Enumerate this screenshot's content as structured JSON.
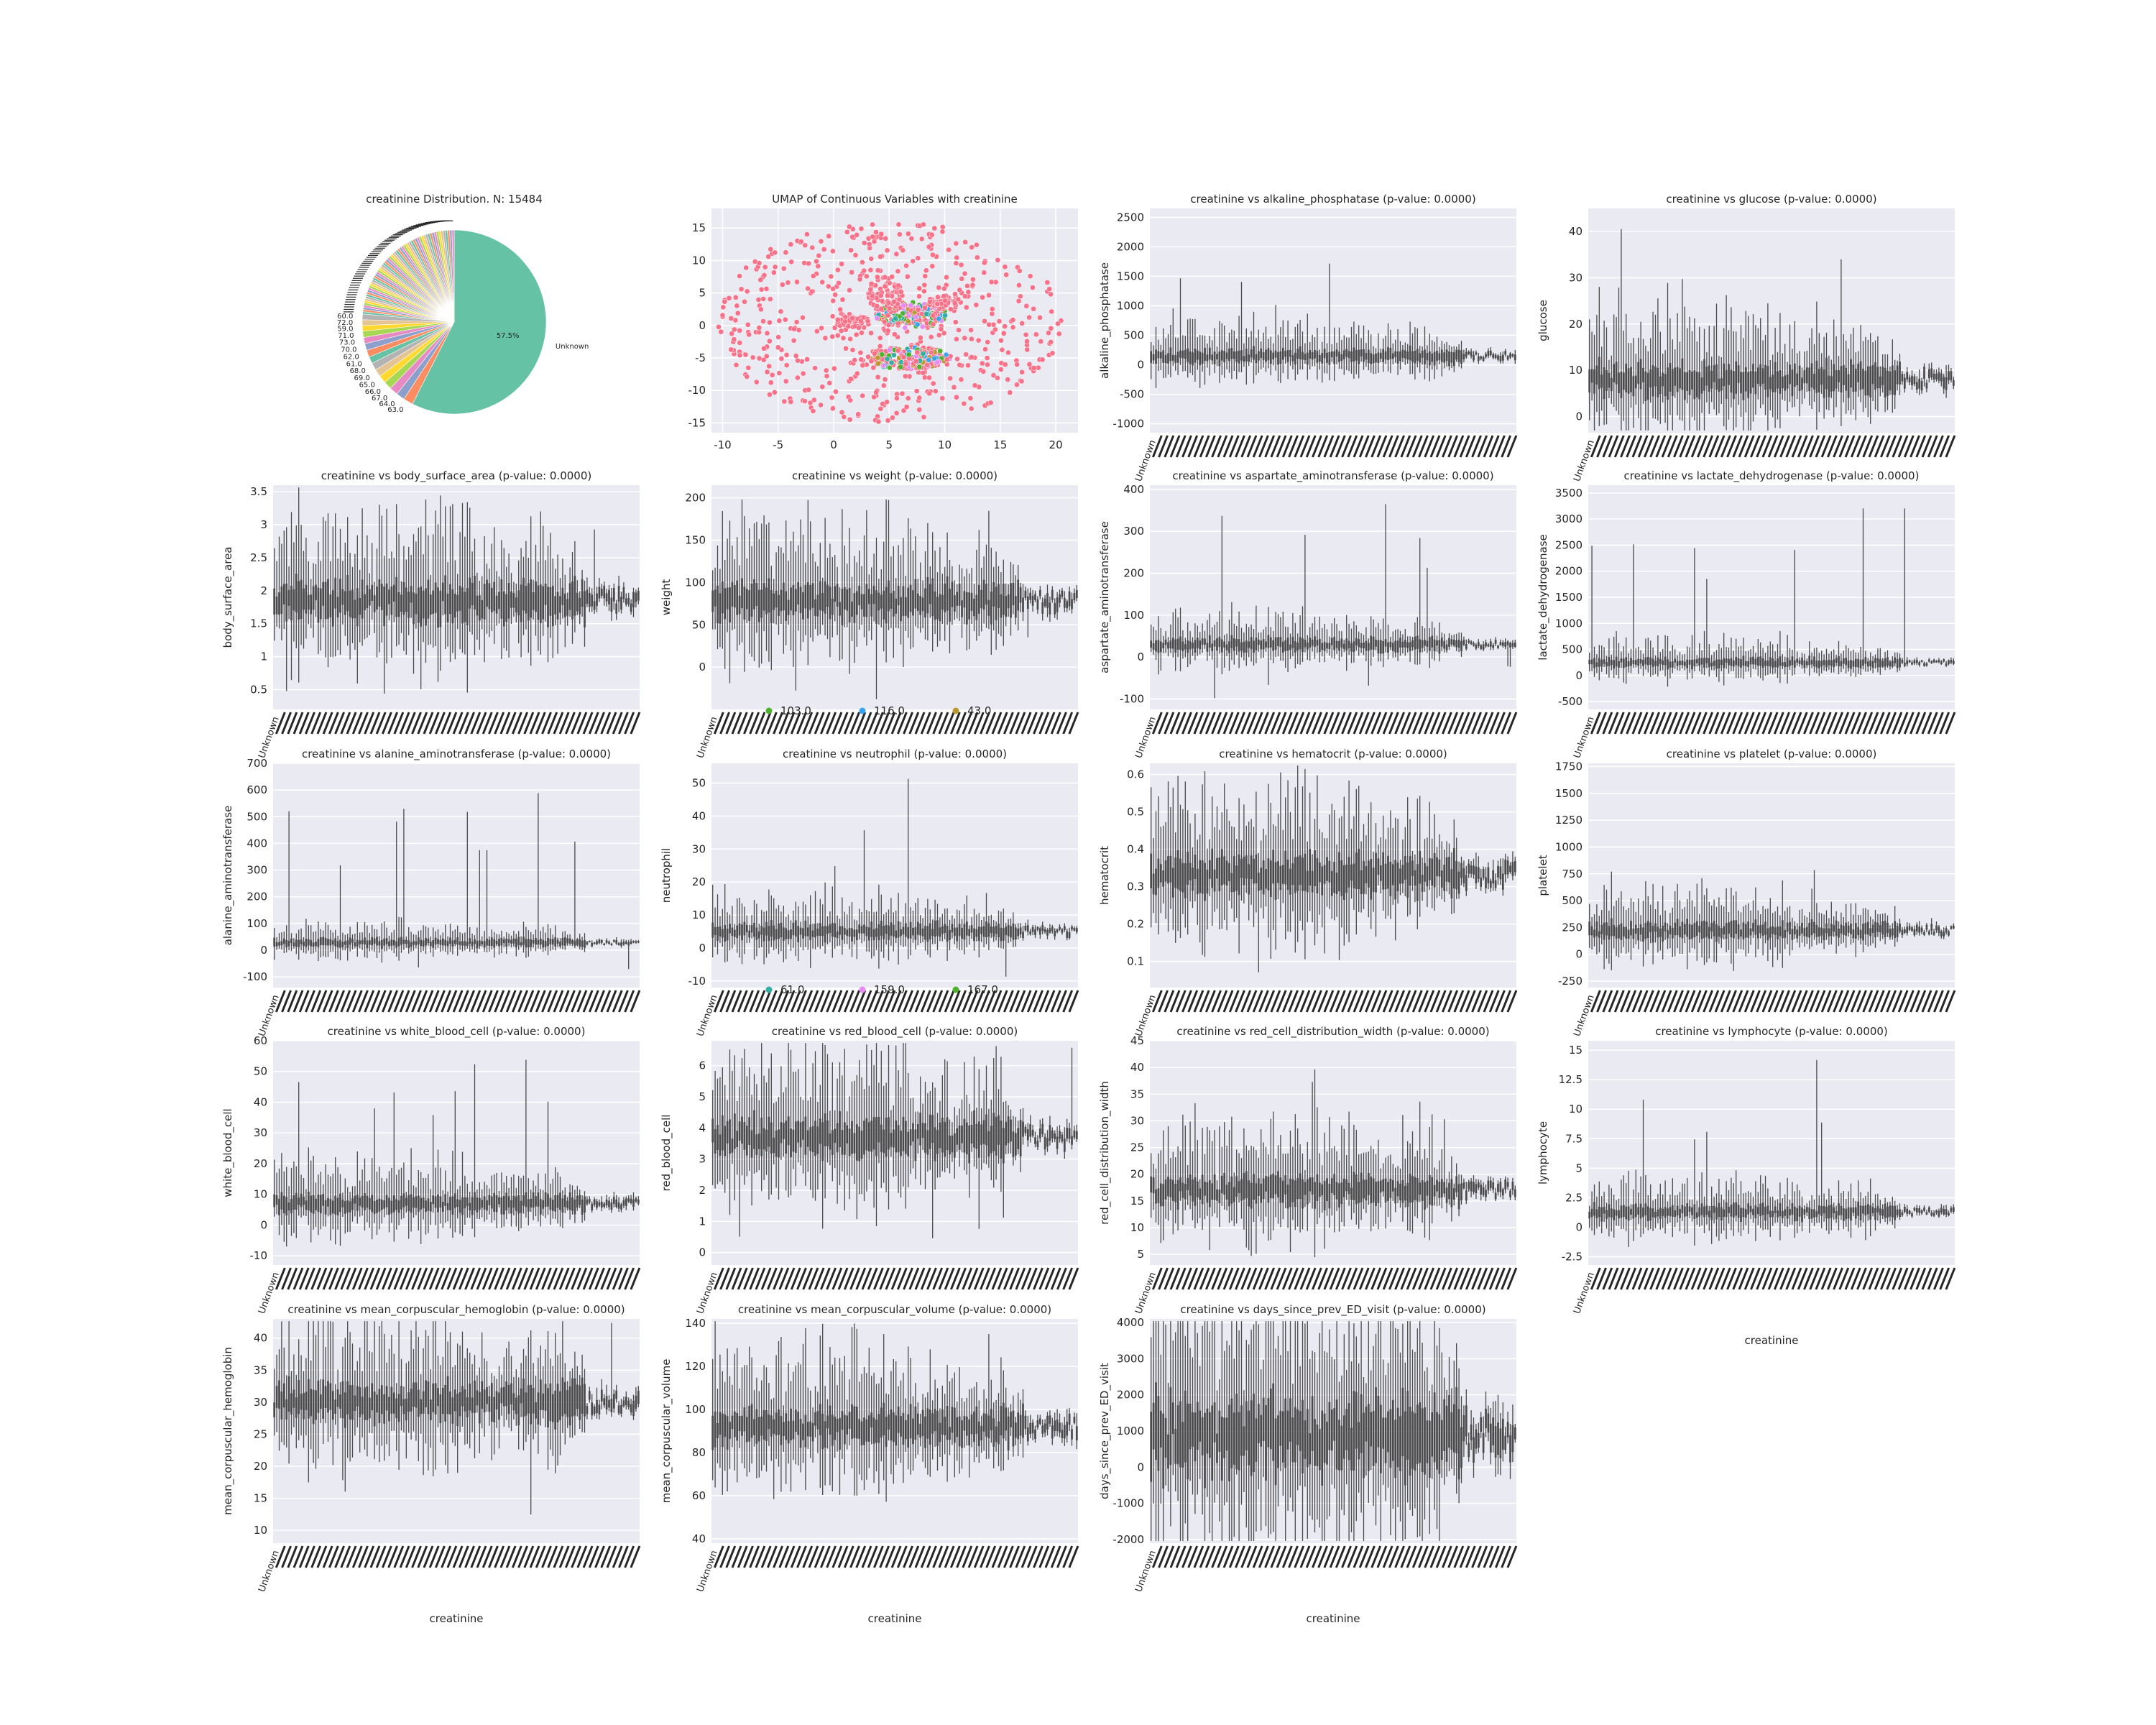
{
  "figure": {
    "background": "#ffffff",
    "panel_bg": "#eaeaf2",
    "grid_color": "#ffffff",
    "box_color": "#4a4a4a",
    "xtick_text": "Unknown",
    "xlabel_text": "creatinine"
  },
  "chart_data": [
    {
      "type": "pie",
      "title": "creatinine Distribution. N: 15484",
      "slices": [
        {
          "label": "Unknown",
          "pct": 57.5,
          "color": "#66c2a5",
          "text": "57.5%"
        },
        {
          "label": "63.0",
          "pct": 1.7,
          "color": "#fc8d62"
        },
        {
          "label": "64.0",
          "pct": 1.5,
          "color": "#8da0cb"
        },
        {
          "label": "67.0",
          "pct": 1.5,
          "color": "#e78ac3"
        },
        {
          "label": "66.0",
          "pct": 1.4,
          "color": "#a6d854"
        },
        {
          "label": "65.0",
          "pct": 1.4,
          "color": "#ffd92f"
        },
        {
          "label": "69.0",
          "pct": 1.3,
          "color": "#e5c494"
        },
        {
          "label": "68.0",
          "pct": 1.3,
          "color": "#b3b3b3"
        },
        {
          "label": "61.0",
          "pct": 1.2,
          "color": "#66c2a5"
        },
        {
          "label": "62.0",
          "pct": 1.2,
          "color": "#fc8d62"
        },
        {
          "label": "70.0",
          "pct": 1.2,
          "color": "#8da0cb"
        },
        {
          "label": "73.0",
          "pct": 1.1,
          "color": "#e78ac3"
        },
        {
          "label": "71.0",
          "pct": 1.1,
          "color": "#a6d854"
        },
        {
          "label": "59.0",
          "pct": 1.0,
          "color": "#ffd92f"
        },
        {
          "label": "72.0",
          "pct": 1.0,
          "color": "#e5c494"
        },
        {
          "label": "60.0",
          "pct": 1.0,
          "color": "#b3b3b3"
        }
      ],
      "tail_colors": [
        "#66c2a5",
        "#fc8d62",
        "#8da0cb",
        "#e78ac3",
        "#a6d854",
        "#ffd92f",
        "#e5c494",
        "#b3b3b3"
      ]
    },
    {
      "type": "scatter",
      "title": "UMAP of Continuous Variables with creatinine",
      "xlim": [
        -11,
        22
      ],
      "ylim": [
        -16.5,
        18
      ],
      "xticks": [
        -10,
        -5,
        0,
        5,
        10,
        15,
        20
      ],
      "yticks": [
        -15,
        -10,
        -5,
        0,
        5,
        10,
        15
      ],
      "series_colors": [
        "#f77189",
        "#50b131",
        "#3ba3ec",
        "#bb9832",
        "#36ada4",
        "#e68bf4"
      ],
      "clusters": [
        {
          "cx": 7,
          "cy": 1.6,
          "rx": 3.2,
          "ry": 2.0,
          "n": 180
        },
        {
          "cx": 6.8,
          "cy": -5,
          "rx": 3.8,
          "ry": 1.7,
          "n": 200
        },
        {
          "cx": 4.6,
          "cy": 5,
          "rx": 1.6,
          "ry": 2.8,
          "n": 80
        },
        {
          "cx": 1.8,
          "cy": 0.5,
          "rx": 1.6,
          "ry": 0.9,
          "n": 60
        },
        {
          "cx": 10,
          "cy": 3.5,
          "rx": 1.5,
          "ry": 1.1,
          "n": 60
        }
      ],
      "scatter_n": 520,
      "legend_entries": [
        "103.0",
        "116.0",
        "43.0",
        "61.0",
        "159.0",
        "167.0"
      ]
    },
    {
      "type": "box",
      "title": "creatinine vs alkaline_phosphatase (p-value: 0.0000)",
      "ylabel": "alkaline_phosphatase",
      "ylim": [
        -1150,
        2650
      ],
      "yticks": [
        -1000,
        -500,
        0,
        500,
        1000,
        1500,
        2000,
        2500
      ],
      "center": 150,
      "spread": 90,
      "peak": 1850,
      "floor": -350
    },
    {
      "type": "box",
      "title": "creatinine vs glucose (p-value: 0.0000)",
      "ylabel": "glucose",
      "ylim": [
        -3.5,
        45
      ],
      "yticks": [
        0,
        10,
        20,
        30,
        40
      ],
      "center": 8,
      "spread": 2.5,
      "peak": 42,
      "floor": -3
    },
    {
      "type": "box",
      "title": "creatinine vs body_surface_area (p-value: 0.0000)",
      "ylabel": "body_surface_area",
      "ylim": [
        0.2,
        3.6
      ],
      "yticks": [
        0.5,
        1.0,
        1.5,
        2.0,
        2.5,
        3.0,
        3.5
      ],
      "center": 1.85,
      "spread": 0.22,
      "peak": 3.5,
      "floor": 0.3
    },
    {
      "type": "box",
      "title": "creatinine vs weight (p-value: 0.0000)",
      "ylabel": "weight",
      "ylim": [
        -50,
        215
      ],
      "yticks": [
        0,
        50,
        100,
        150,
        200
      ],
      "center": 78,
      "spread": 16,
      "peak": 205,
      "floor": -40
    },
    {
      "type": "box",
      "title": "creatinine vs aspartate_aminotransferase (p-value: 0.0000)",
      "ylabel": "aspartate_aminotransferase",
      "ylim": [
        -125,
        410
      ],
      "yticks": [
        -100,
        0,
        100,
        200,
        300,
        400
      ],
      "center": 30,
      "spread": 12,
      "peak": 400,
      "floor": -100
    },
    {
      "type": "box",
      "title": "creatinine vs lactate_dehydrogenase (p-value: 0.0000)",
      "ylabel": "lactate_dehydrogenase",
      "ylim": [
        -650,
        3650
      ],
      "yticks": [
        -500,
        0,
        500,
        1000,
        1500,
        2000,
        2500,
        3000,
        3500
      ],
      "center": 250,
      "spread": 70,
      "peak": 3550,
      "floor": -300
    },
    {
      "type": "box",
      "title": "creatinine vs alanine_aminotransferase (p-value: 0.0000)",
      "ylabel": "alanine_aminotransferase",
      "ylim": [
        -140,
        700
      ],
      "yticks": [
        -100,
        0,
        100,
        200,
        300,
        400,
        500,
        600,
        700
      ],
      "center": 28,
      "spread": 12,
      "peak": 670,
      "floor": -110
    },
    {
      "type": "box",
      "title": "creatinine vs neutrophil (p-value: 0.0000)",
      "ylabel": "neutrophil",
      "ylim": [
        -12,
        56
      ],
      "yticks": [
        -10,
        0,
        10,
        20,
        30,
        40,
        50
      ],
      "center": 5,
      "spread": 1.8,
      "peak": 53,
      "floor": -9
    },
    {
      "type": "box",
      "title": "creatinine vs hematocrit (p-value: 0.0000)",
      "ylabel": "hematocrit",
      "ylim": [
        0.03,
        0.63
      ],
      "yticks": [
        0.1,
        0.2,
        0.3,
        0.4,
        0.5,
        0.6
      ],
      "center": 0.33,
      "spread": 0.04,
      "peak": 0.62,
      "floor": 0.05
    },
    {
      "type": "box",
      "title": "creatinine vs platelet (p-value: 0.0000)",
      "ylabel": "platelet",
      "ylim": [
        -310,
        1780
      ],
      "yticks": [
        -250,
        0,
        250,
        500,
        750,
        1000,
        1250,
        1500,
        1750
      ],
      "center": 220,
      "spread": 60,
      "peak": 1720,
      "floor": -200
    },
    {
      "type": "box",
      "title": "creatinine vs white_blood_cell (p-value: 0.0000)",
      "ylabel": "white_blood_cell",
      "ylim": [
        -13,
        60
      ],
      "yticks": [
        -10,
        0,
        10,
        20,
        30,
        40,
        50,
        60
      ],
      "center": 7,
      "spread": 2.2,
      "peak": 58,
      "floor": -10
    },
    {
      "type": "box",
      "title": "creatinine vs red_blood_cell (p-value: 0.0000)",
      "ylabel": "red_blood_cell",
      "ylim": [
        -0.4,
        6.8
      ],
      "yticks": [
        0,
        1,
        2,
        3,
        4,
        5,
        6
      ],
      "center": 3.7,
      "spread": 0.45,
      "peak": 6.6,
      "floor": 0.1
    },
    {
      "type": "box",
      "title": "creatinine vs red_cell_distribution_width (p-value: 0.0000)",
      "ylabel": "red_cell_distribution_width",
      "ylim": [
        3,
        45
      ],
      "yticks": [
        5,
        10,
        15,
        20,
        25,
        30,
        35,
        40,
        45
      ],
      "center": 17,
      "spread": 2.0,
      "peak": 42,
      "floor": 4.5
    },
    {
      "type": "box",
      "title": "creatinine vs lymphocyte (p-value: 0.0000)",
      "ylabel": "lymphocyte",
      "ylim": [
        -3.2,
        15.8
      ],
      "yticks": [
        -2.5,
        0.0,
        2.5,
        5.0,
        7.5,
        10.0,
        12.5,
        15.0
      ],
      "center": 1.3,
      "spread": 0.45,
      "peak": 15.2,
      "floor": -1.5,
      "xlabel": "creatinine"
    },
    {
      "type": "box",
      "title": "creatinine vs mean_corpuscular_hemoglobin (p-value: 0.0000)",
      "ylabel": "mean_corpuscular_hemoglobin",
      "ylim": [
        8,
        43
      ],
      "yticks": [
        10,
        15,
        20,
        25,
        30,
        35,
        40
      ],
      "center": 30,
      "spread": 2.2,
      "peak": 43,
      "floor": 10,
      "xlabel": "creatinine"
    },
    {
      "type": "box",
      "title": "creatinine vs mean_corpuscular_volume (p-value: 0.0000)",
      "ylabel": "mean_corpuscular_volume",
      "ylim": [
        38,
        142
      ],
      "yticks": [
        40,
        60,
        80,
        100,
        120,
        140
      ],
      "center": 92,
      "spread": 6,
      "peak": 135,
      "floor": 45,
      "xlabel": "creatinine"
    },
    {
      "type": "box",
      "title": "creatinine vs days_since_prev_ED_visit (p-value: 0.0000)",
      "ylabel": "days_since_prev_ED_visit",
      "ylim": [
        -2100,
        4100
      ],
      "yticks": [
        -2000,
        -1000,
        0,
        1000,
        2000,
        3000,
        4000
      ],
      "center": 900,
      "spread": 800,
      "peak": 3900,
      "floor": -1900,
      "xlabel": "creatinine"
    }
  ]
}
